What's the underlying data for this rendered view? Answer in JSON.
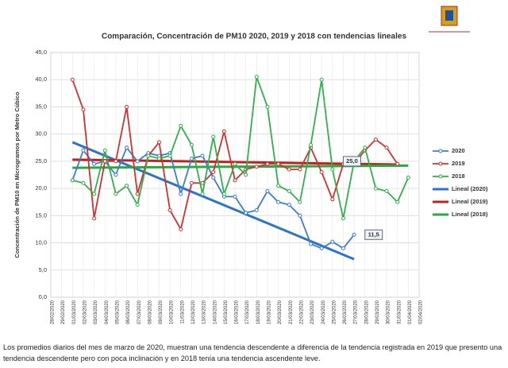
{
  "chart_data": {
    "type": "line",
    "title": "Comparación, Concentración de PM10 2020, 2019 y 2018 con tendencias lineales",
    "y_label": "Concentración de PM10 en Microgramos por Metro Cúbico",
    "categories": [
      "28/02/2020",
      "29/02/2020",
      "01/03/2020",
      "02/03/2020",
      "03/03/2020",
      "04/03/2020",
      "05/03/2020",
      "06/03/2020",
      "07/03/2020",
      "08/03/2020",
      "09/03/2020",
      "10/03/2020",
      "11/03/2020",
      "12/03/2020",
      "13/03/2020",
      "14/03/2020",
      "15/03/2020",
      "16/03/2020",
      "17/03/2020",
      "18/03/2020",
      "19/03/2020",
      "20/03/2020",
      "21/03/2020",
      "22/03/2020",
      "23/03/2020",
      "24/03/2020",
      "25/03/2020",
      "26/03/2020",
      "27/03/2020",
      "28/03/2020",
      "29/03/2020",
      "30/03/2020",
      "31/03/2020",
      "01/04/2020",
      "02/04/2020"
    ],
    "ylim": [
      0,
      45
    ],
    "yticks": [
      {
        "value": 0,
        "label": "0,0"
      },
      {
        "value": 5,
        "label": "5,0"
      },
      {
        "value": 10,
        "label": "10,0"
      },
      {
        "value": 15,
        "label": "15,0"
      },
      {
        "value": 20,
        "label": "20,0"
      },
      {
        "value": 25,
        "label": "25,0"
      },
      {
        "value": 30,
        "label": "30,0"
      },
      {
        "value": 35,
        "label": "35,0"
      },
      {
        "value": 40,
        "label": "40,0"
      },
      {
        "value": 45,
        "label": "45,0"
      }
    ],
    "grid": true,
    "legend": "right",
    "series": [
      {
        "name": "2020",
        "color": "#3a7dc9",
        "values": [
          null,
          null,
          21.5,
          27,
          24.5,
          25,
          22.5,
          27.5,
          25,
          26.5,
          26,
          26.5,
          19,
          25.5,
          26,
          22,
          18.5,
          18.5,
          15.5,
          16,
          19.5,
          17.5,
          17,
          15,
          9.8,
          9,
          10.2,
          9,
          11.5,
          null,
          null,
          null,
          null,
          null,
          null
        ]
      },
      {
        "name": "2019",
        "color": "#d03030",
        "values": [
          null,
          null,
          40,
          34.5,
          14.5,
          25,
          25,
          35,
          19,
          26,
          28.5,
          16,
          12.5,
          21,
          21,
          23,
          30.5,
          21.5,
          23.5,
          24,
          24.5,
          24.5,
          23.5,
          23.5,
          27.5,
          23,
          18,
          24.5,
          24.5,
          27,
          29,
          27.5,
          24.5,
          null,
          null
        ]
      },
      {
        "name": "2018",
        "color": "#2fb04a",
        "values": [
          null,
          null,
          21.5,
          21,
          19,
          27,
          19,
          20.5,
          17,
          26,
          25.5,
          26,
          31.5,
          28,
          19,
          29.5,
          19,
          24.5,
          22.5,
          40.5,
          35,
          20.5,
          19.5,
          17.5,
          28,
          40,
          23.5,
          14.5,
          25,
          27.5,
          20,
          19.5,
          17.5,
          22,
          null
        ]
      }
    ],
    "trendlines": [
      {
        "name": "Lineal (2020)",
        "color": "#2a75c8",
        "start": 28.5,
        "end": 7
      },
      {
        "name": "Lineal (2019)",
        "color": "#c02020",
        "start": 25.3,
        "end": 24.4
      },
      {
        "name": "Lineal (2018)",
        "color": "#2aa844",
        "start": 23.8,
        "end": 24.2
      }
    ],
    "annotations": [
      {
        "text": "25,0",
        "value": 25
      },
      {
        "text": "11,5",
        "value": 11.5
      }
    ]
  },
  "caption": "Los promedios diarios del mes de marzo de 2020, muestran una tendencia descendente a diferencia de la tendencia registrada en 2019 que presento una tendencia descendente pero con poca inclinación y en 2018 tenía una tendencia ascendente leve."
}
